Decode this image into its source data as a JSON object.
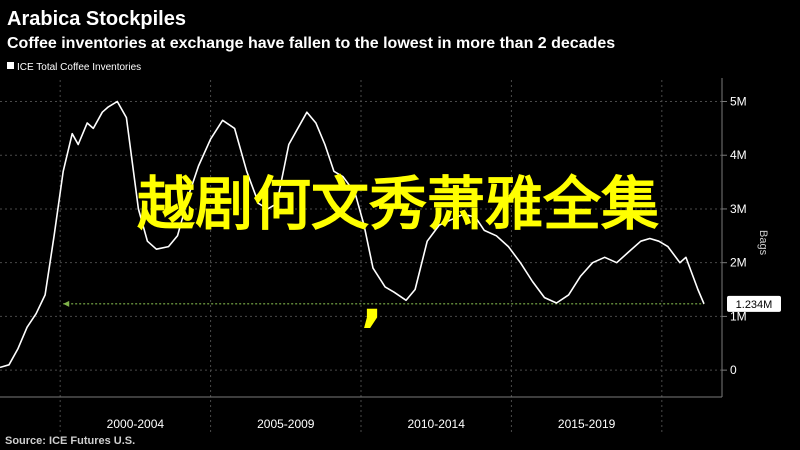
{
  "title": "Arabica Stockpiles",
  "subtitle": "Coffee inventories at exchange have fallen to the lowest in more than 2 decades",
  "source": "Source: ICE Futures U.S.",
  "overlay_text": "越剧何文秀萧雅全集",
  "colors": {
    "background": "#000000",
    "line": "#ffffff",
    "reference": "#7fb24a",
    "overlay": "#ffff00"
  },
  "chart_data": {
    "type": "line",
    "title": "Arabica Stockpiles",
    "subtitle": "Coffee inventories at exchange have fallen to the lowest in more than 2 decades",
    "legend_position": "top-left",
    "series": [
      {
        "name": "ICE Total Coffee Inventories",
        "x": [
          1998.0,
          1998.3,
          1998.6,
          1998.9,
          1999.2,
          1999.5,
          1999.8,
          2000.1,
          2000.4,
          2000.6,
          2000.9,
          2001.1,
          2001.4,
          2001.6,
          2001.9,
          2002.2,
          2002.6,
          2002.9,
          2003.2,
          2003.6,
          2003.9,
          2004.3,
          2004.6,
          2005.0,
          2005.4,
          2005.8,
          2006.2,
          2006.6,
          2006.9,
          2007.2,
          2007.6,
          2007.9,
          2008.2,
          2008.5,
          2008.8,
          2009.1,
          2009.4,
          2009.8,
          2010.1,
          2010.4,
          2010.8,
          2011.1,
          2011.5,
          2011.8,
          2012.2,
          2012.6,
          2013.0,
          2013.4,
          2013.8,
          2014.1,
          2014.5,
          2014.9,
          2015.3,
          2015.7,
          2016.1,
          2016.5,
          2016.9,
          2017.3,
          2017.7,
          2018.1,
          2018.5,
          2018.9,
          2019.3,
          2019.6,
          2019.9,
          2020.2,
          2020.6,
          2020.8,
          2021.0,
          2021.2,
          2021.4
        ],
        "y": [
          0.05,
          0.1,
          0.4,
          0.8,
          1.05,
          1.4,
          2.5,
          3.7,
          4.4,
          4.2,
          4.6,
          4.5,
          4.8,
          4.9,
          5.0,
          4.7,
          3.0,
          2.4,
          2.25,
          2.3,
          2.5,
          3.3,
          3.8,
          4.3,
          4.65,
          4.5,
          3.7,
          3.1,
          3.0,
          3.1,
          4.2,
          4.5,
          4.8,
          4.6,
          4.2,
          3.7,
          3.6,
          3.3,
          2.7,
          1.9,
          1.55,
          1.45,
          1.3,
          1.5,
          2.4,
          2.7,
          2.8,
          2.9,
          2.85,
          2.6,
          2.5,
          2.3,
          2.0,
          1.65,
          1.35,
          1.25,
          1.4,
          1.75,
          2.0,
          2.1,
          2.0,
          2.2,
          2.4,
          2.45,
          2.4,
          2.3,
          2.0,
          2.1,
          1.8,
          1.5,
          1.234
        ]
      }
    ],
    "reference_line": {
      "value": 1.234,
      "label": "1.234M",
      "color": "#7fb24a"
    },
    "x_range": [
      1998,
      2022
    ],
    "y_range": [
      -0.5,
      5.4
    ],
    "x_tick_labels": [
      {
        "label": "2000-2004",
        "start": 2000,
        "end": 2005
      },
      {
        "label": "2005-2009",
        "start": 2005,
        "end": 2010
      },
      {
        "label": "2010-2014",
        "start": 2010,
        "end": 2015
      },
      {
        "label": "2015-2019",
        "start": 2015,
        "end": 2020
      }
    ],
    "x_separators": [
      2000,
      2005,
      2010,
      2015,
      2020
    ],
    "y_ticks": [
      {
        "value": 0,
        "label": "0"
      },
      {
        "value": 1,
        "label": "1M"
      },
      {
        "value": 2,
        "label": "2M"
      },
      {
        "value": 3,
        "label": "3M"
      },
      {
        "value": 4,
        "label": "4M"
      },
      {
        "value": 5,
        "label": "5M"
      }
    ],
    "y_unit": "Bags",
    "y_axis_side": "right",
    "grid": true
  }
}
